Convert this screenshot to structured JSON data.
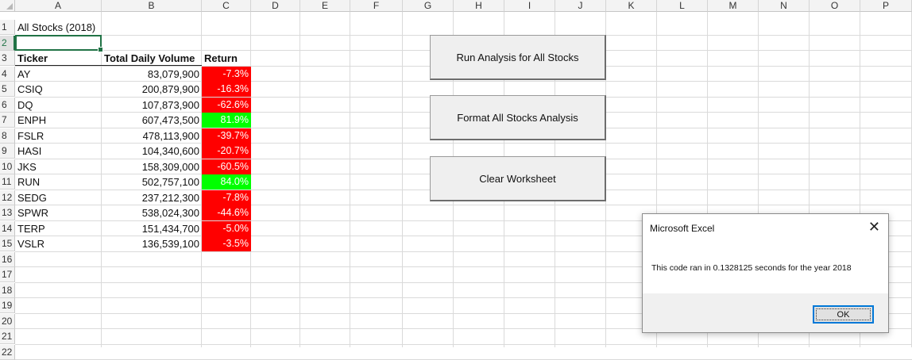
{
  "columns": [
    "A",
    "B",
    "C",
    "D",
    "E",
    "F",
    "G",
    "H",
    "I",
    "J",
    "K",
    "L",
    "M",
    "N",
    "O",
    "P"
  ],
  "rows": [
    "1",
    "2",
    "3",
    "4",
    "5",
    "6",
    "7",
    "8",
    "9",
    "10",
    "11",
    "12",
    "13",
    "14",
    "15",
    "16",
    "17",
    "18",
    "19",
    "20",
    "21",
    "22"
  ],
  "active_row": "2",
  "title_cell": "All Stocks (2018)",
  "headers": {
    "ticker": "Ticker",
    "volume": "Total Daily Volume",
    "return": "Return"
  },
  "stocks": [
    {
      "ticker": "AY",
      "volume": "83,079,900",
      "return": "-7.3%",
      "status": "negative"
    },
    {
      "ticker": "CSIQ",
      "volume": "200,879,900",
      "return": "-16.3%",
      "status": "negative"
    },
    {
      "ticker": "DQ",
      "volume": "107,873,900",
      "return": "-62.6%",
      "status": "negative"
    },
    {
      "ticker": "ENPH",
      "volume": "607,473,500",
      "return": "81.9%",
      "status": "positive"
    },
    {
      "ticker": "FSLR",
      "volume": "478,113,900",
      "return": "-39.7%",
      "status": "negative"
    },
    {
      "ticker": "HASI",
      "volume": "104,340,600",
      "return": "-20.7%",
      "status": "negative"
    },
    {
      "ticker": "JKS",
      "volume": "158,309,000",
      "return": "-60.5%",
      "status": "negative"
    },
    {
      "ticker": "RUN",
      "volume": "502,757,100",
      "return": "84.0%",
      "status": "positive"
    },
    {
      "ticker": "SEDG",
      "volume": "237,212,300",
      "return": "-7.8%",
      "status": "negative"
    },
    {
      "ticker": "SPWR",
      "volume": "538,024,300",
      "return": "-44.6%",
      "status": "negative"
    },
    {
      "ticker": "TERP",
      "volume": "151,434,700",
      "return": "-5.0%",
      "status": "negative"
    },
    {
      "ticker": "VSLR",
      "volume": "136,539,100",
      "return": "-3.5%",
      "status": "negative"
    }
  ],
  "colors": {
    "positive": "#00ff00",
    "negative": "#ff0000",
    "selection": "#217346"
  },
  "buttons": {
    "run": "Run Analysis for All Stocks",
    "format": "Format All Stocks Analysis",
    "clear": "Clear Worksheet"
  },
  "dialog": {
    "title": "Microsoft Excel",
    "message": "This code ran in 0.1328125 seconds for the year 2018",
    "ok_label": "OK",
    "close_icon": "close-icon"
  }
}
